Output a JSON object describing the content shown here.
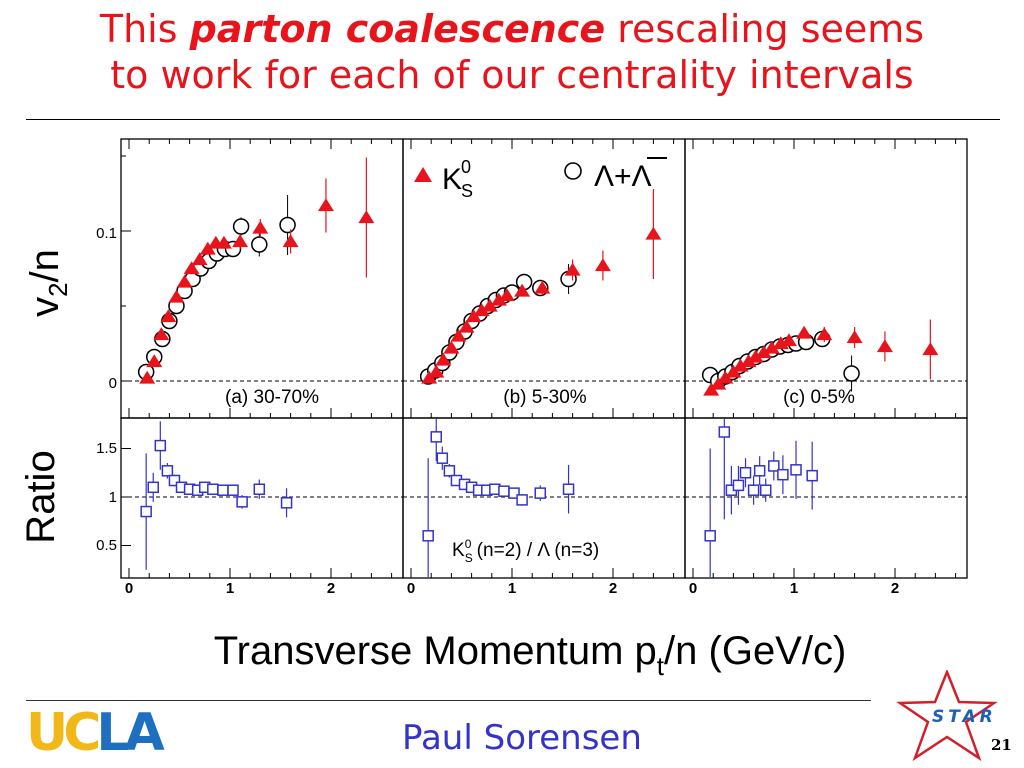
{
  "slide": {
    "title_pre": "This ",
    "title_emph": "parton coalescence",
    "title_post": " rescaling seems",
    "title_line2": "to work for each of our centrality intervals",
    "presenter": "Paul Sorensen",
    "page_number": "21",
    "logo_ucla_uc": "UC",
    "logo_ucla_la": "LA",
    "logo_star": "STAR"
  },
  "colors": {
    "title": "#e8141c",
    "kshort": "#e8141c",
    "lambda": "#000000",
    "ratio": "#3333cc",
    "presenter": "#3333cc"
  },
  "chart_data": {
    "type": "scatter",
    "xlabel": "Transverse Momentum p_t/n (GeV/c)",
    "xlabel_main": "Transverse Momentum p",
    "xlabel_sub": "t",
    "xlabel_tail": "/n (GeV/c)",
    "ylabel_top_main": "v",
    "ylabel_top_sub": "2",
    "ylabel_top_tail": "/n",
    "ylabel_bottom": "Ratio",
    "xlim": [
      0,
      2.8
    ],
    "xticks": [
      "0",
      "1",
      "2"
    ],
    "ylim_top": [
      -0.022,
      0.162
    ],
    "yticks_top": [
      "0",
      "0.1"
    ],
    "ylim_ratio": [
      0.25,
      1.85
    ],
    "yticks_ratio": [
      "0.5",
      "1",
      "1.5"
    ],
    "legend": {
      "k0s": "K",
      "k0s_sub": "S",
      "k0s_sup": "0",
      "lambda": "Λ+Λ"
    },
    "ratio_annotation": {
      "k": "K",
      "k_sub": "S",
      "k_sup": "0",
      "n1": " (n=2)",
      "slash": " / ",
      "lam": "Λ",
      "n2": " (n=3)"
    },
    "panels": [
      {
        "label": "(a) 30-70%",
        "series": [
          {
            "name": "K0S",
            "points": [
              [
                0.18,
                0.002,
                0.003
              ],
              [
                0.25,
                0.013,
                0.003
              ],
              [
                0.32,
                0.031,
                0.003
              ],
              [
                0.39,
                0.043,
                0.003
              ],
              [
                0.47,
                0.056,
                0.003
              ],
              [
                0.55,
                0.066,
                0.003
              ],
              [
                0.62,
                0.075,
                0.003
              ],
              [
                0.7,
                0.081,
                0.003
              ],
              [
                0.78,
                0.088,
                0.003
              ],
              [
                0.86,
                0.092,
                0.004
              ],
              [
                0.94,
                0.092,
                0.004
              ],
              [
                1.1,
                0.093,
                0.005
              ],
              [
                1.3,
                0.102,
                0.006
              ],
              [
                1.6,
                0.093,
                0.008
              ],
              [
                1.95,
                0.117,
                0.018
              ],
              [
                2.35,
                0.109,
                0.04
              ]
            ]
          },
          {
            "name": "Lambda",
            "points": [
              [
                0.17,
                0.006,
                0.003
              ],
              [
                0.25,
                0.016,
                0.003
              ],
              [
                0.33,
                0.028,
                0.003
              ],
              [
                0.4,
                0.04,
                0.003
              ],
              [
                0.47,
                0.05,
                0.003
              ],
              [
                0.55,
                0.06,
                0.003
              ],
              [
                0.63,
                0.068,
                0.003
              ],
              [
                0.71,
                0.075,
                0.003
              ],
              [
                0.79,
                0.08,
                0.003
              ],
              [
                0.87,
                0.085,
                0.004
              ],
              [
                0.95,
                0.088,
                0.004
              ],
              [
                1.03,
                0.088,
                0.005
              ],
              [
                1.11,
                0.103,
                0.006
              ],
              [
                1.29,
                0.091,
                0.008
              ],
              [
                1.57,
                0.104,
                0.02
              ]
            ]
          }
        ],
        "ratio": [
          [
            0.17,
            0.85,
            0.6
          ],
          [
            0.24,
            1.1,
            0.15
          ],
          [
            0.31,
            1.53,
            0.25
          ],
          [
            0.38,
            1.27,
            0.08
          ],
          [
            0.45,
            1.17,
            0.06
          ],
          [
            0.52,
            1.1,
            0.05
          ],
          [
            0.6,
            1.08,
            0.05
          ],
          [
            0.68,
            1.07,
            0.05
          ],
          [
            0.75,
            1.1,
            0.05
          ],
          [
            0.83,
            1.08,
            0.05
          ],
          [
            0.93,
            1.07,
            0.05
          ],
          [
            1.03,
            1.07,
            0.06
          ],
          [
            1.12,
            0.95,
            0.07
          ],
          [
            1.29,
            1.08,
            0.1
          ],
          [
            1.56,
            0.94,
            0.15
          ]
        ]
      },
      {
        "label": "(b) 5-30%",
        "series": [
          {
            "name": "K0S",
            "points": [
              [
                0.18,
                0.002,
                0.002
              ],
              [
                0.25,
                0.006,
                0.002
              ],
              [
                0.32,
                0.014,
                0.002
              ],
              [
                0.4,
                0.022,
                0.002
              ],
              [
                0.47,
                0.03,
                0.002
              ],
              [
                0.55,
                0.036,
                0.002
              ],
              [
                0.62,
                0.043,
                0.002
              ],
              [
                0.7,
                0.047,
                0.002
              ],
              [
                0.78,
                0.05,
                0.002
              ],
              [
                0.87,
                0.054,
                0.003
              ],
              [
                0.95,
                0.057,
                0.003
              ],
              [
                1.1,
                0.06,
                0.004
              ],
              [
                1.3,
                0.062,
                0.005
              ],
              [
                1.6,
                0.074,
                0.007
              ],
              [
                1.9,
                0.077,
                0.01
              ],
              [
                2.4,
                0.098,
                0.03
              ]
            ]
          },
          {
            "name": "Lambda",
            "points": [
              [
                0.17,
                0.003,
                0.002
              ],
              [
                0.24,
                0.007,
                0.002
              ],
              [
                0.31,
                0.012,
                0.002
              ],
              [
                0.38,
                0.019,
                0.002
              ],
              [
                0.45,
                0.026,
                0.002
              ],
              [
                0.53,
                0.033,
                0.002
              ],
              [
                0.6,
                0.04,
                0.002
              ],
              [
                0.68,
                0.045,
                0.002
              ],
              [
                0.76,
                0.05,
                0.002
              ],
              [
                0.84,
                0.054,
                0.002
              ],
              [
                0.92,
                0.057,
                0.003
              ],
              [
                1.0,
                0.059,
                0.003
              ],
              [
                1.12,
                0.066,
                0.004
              ],
              [
                1.28,
                0.062,
                0.005
              ],
              [
                1.56,
                0.068,
                0.01
              ]
            ]
          }
        ],
        "ratio": [
          [
            0.17,
            0.6,
            0.8
          ],
          [
            0.25,
            1.62,
            0.25
          ],
          [
            0.31,
            1.4,
            0.12
          ],
          [
            0.38,
            1.27,
            0.07
          ],
          [
            0.45,
            1.17,
            0.05
          ],
          [
            0.53,
            1.13,
            0.04
          ],
          [
            0.6,
            1.1,
            0.04
          ],
          [
            0.67,
            1.07,
            0.04
          ],
          [
            0.75,
            1.07,
            0.04
          ],
          [
            0.83,
            1.08,
            0.04
          ],
          [
            0.92,
            1.06,
            0.05
          ],
          [
            1.02,
            1.04,
            0.05
          ],
          [
            1.1,
            0.97,
            0.06
          ],
          [
            1.28,
            1.04,
            0.08
          ],
          [
            1.56,
            1.08,
            0.25
          ]
        ]
      },
      {
        "label": "(c) 0-5%",
        "series": [
          {
            "name": "K0S",
            "points": [
              [
                0.18,
                -0.006,
                0.002
              ],
              [
                0.25,
                -0.002,
                0.002
              ],
              [
                0.32,
                0.002,
                0.002
              ],
              [
                0.4,
                0.006,
                0.002
              ],
              [
                0.47,
                0.01,
                0.002
              ],
              [
                0.55,
                0.013,
                0.002
              ],
              [
                0.62,
                0.016,
                0.002
              ],
              [
                0.7,
                0.019,
                0.002
              ],
              [
                0.78,
                0.022,
                0.002
              ],
              [
                0.87,
                0.025,
                0.003
              ],
              [
                0.95,
                0.027,
                0.003
              ],
              [
                1.1,
                0.032,
                0.004
              ],
              [
                1.3,
                0.031,
                0.005
              ],
              [
                1.6,
                0.029,
                0.007
              ],
              [
                1.9,
                0.023,
                0.01
              ],
              [
                2.35,
                0.021,
                0.02
              ]
            ]
          },
          {
            "name": "Lambda",
            "points": [
              [
                0.17,
                0.004,
                0.003
              ],
              [
                0.25,
                0.0,
                0.002
              ],
              [
                0.32,
                0.003,
                0.002
              ],
              [
                0.39,
                0.006,
                0.002
              ],
              [
                0.46,
                0.01,
                0.002
              ],
              [
                0.54,
                0.013,
                0.002
              ],
              [
                0.62,
                0.016,
                0.002
              ],
              [
                0.7,
                0.018,
                0.002
              ],
              [
                0.78,
                0.021,
                0.002
              ],
              [
                0.86,
                0.023,
                0.003
              ],
              [
                0.94,
                0.024,
                0.003
              ],
              [
                1.02,
                0.025,
                0.004
              ],
              [
                1.12,
                0.026,
                0.004
              ],
              [
                1.28,
                0.028,
                0.005
              ],
              [
                1.57,
                0.005,
                0.012
              ]
            ]
          }
        ],
        "ratio": [
          [
            0.17,
            0.6,
            0.9
          ],
          [
            0.31,
            1.67,
            0.9
          ],
          [
            0.38,
            1.07,
            0.25
          ],
          [
            0.45,
            1.12,
            0.2
          ],
          [
            0.52,
            1.25,
            0.15
          ],
          [
            0.6,
            1.07,
            0.15
          ],
          [
            0.66,
            1.27,
            0.15
          ],
          [
            0.72,
            1.07,
            0.12
          ],
          [
            0.8,
            1.32,
            0.15
          ],
          [
            0.89,
            1.23,
            0.2
          ],
          [
            1.02,
            1.28,
            0.3
          ],
          [
            1.18,
            1.22,
            0.35
          ]
        ]
      }
    ]
  }
}
